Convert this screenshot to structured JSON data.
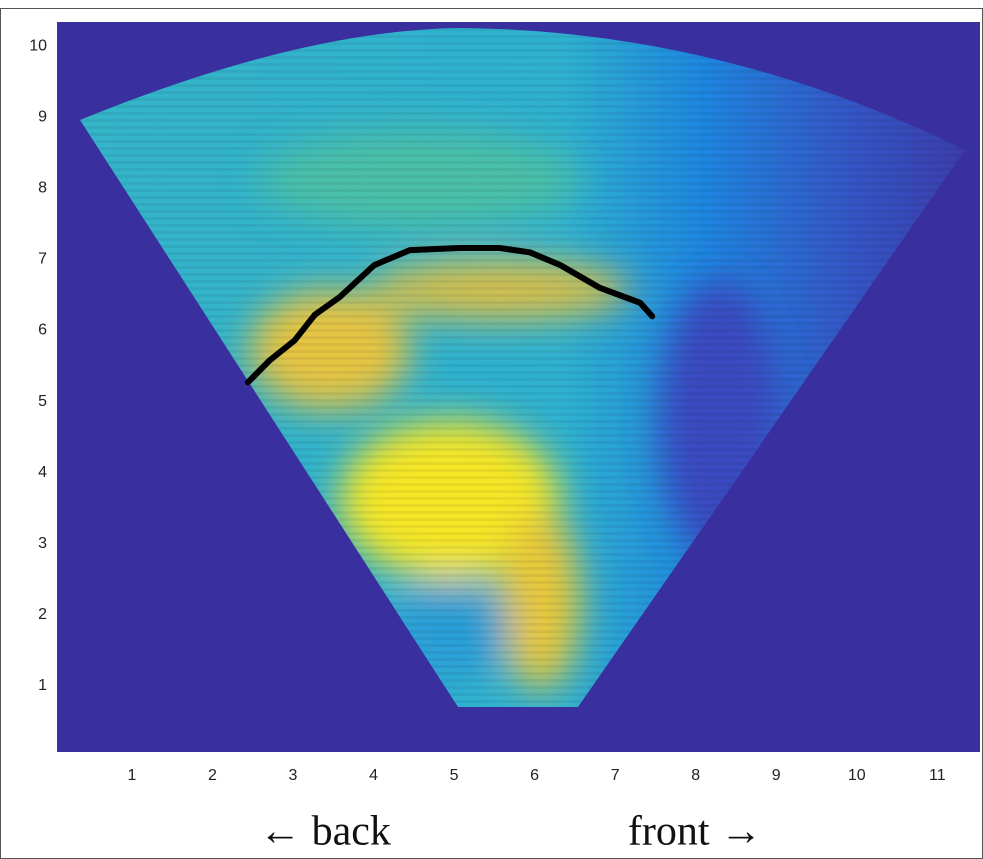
{
  "chart_data": {
    "type": "line",
    "x": [
      2.44,
      2.71,
      3.02,
      3.27,
      3.58,
      4.01,
      4.45,
      5.07,
      5.57,
      5.94,
      6.32,
      6.81,
      7.31,
      7.46
    ],
    "values": [
      5.27,
      5.58,
      5.86,
      6.22,
      6.47,
      6.92,
      7.13,
      7.16,
      7.16,
      7.1,
      6.92,
      6.6,
      6.39,
      6.2
    ],
    "color": "#000000",
    "xlim": [
      0.07,
      11.53
    ],
    "ylim": [
      0.07,
      10.34
    ],
    "xticks": [
      1,
      2,
      3,
      4,
      5,
      6,
      7,
      8,
      9,
      10,
      11
    ],
    "yticks": [
      1,
      2,
      3,
      4,
      5,
      6,
      7,
      8,
      9,
      10
    ],
    "annotations": [
      "← back",
      "front →"
    ]
  }
}
